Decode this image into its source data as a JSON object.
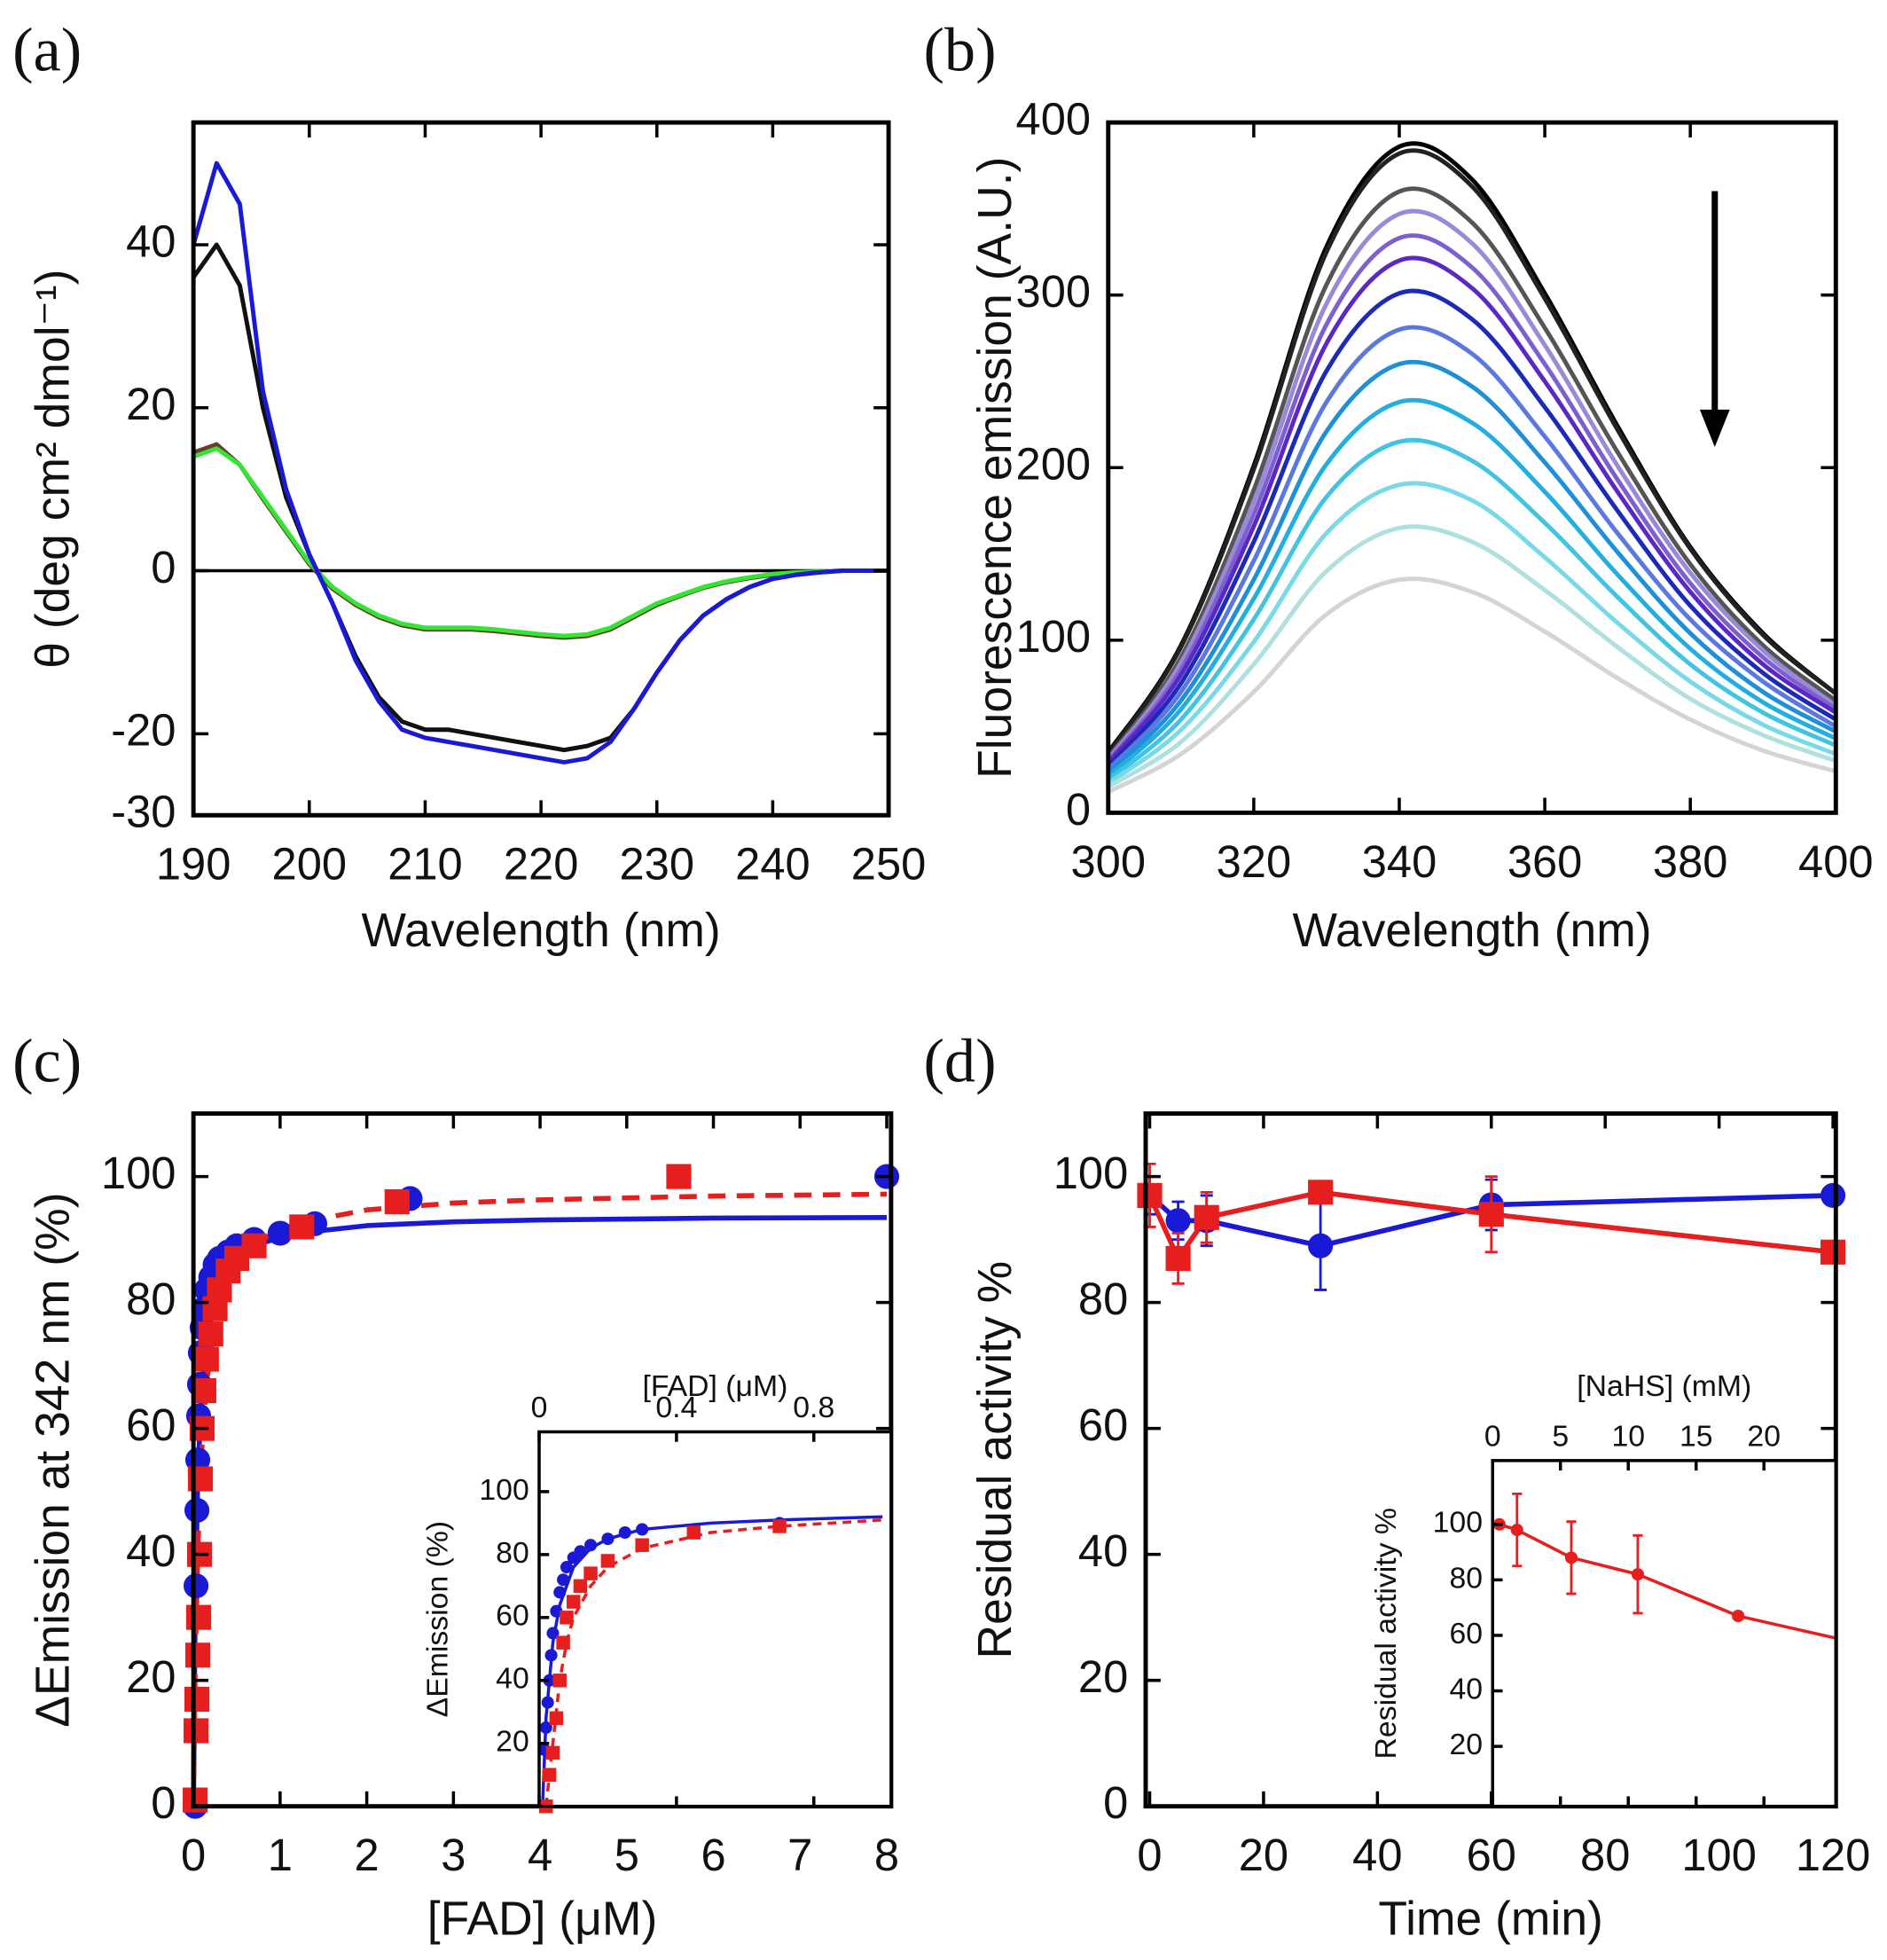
{
  "chart_data": [
    {
      "type": "line",
      "panel_label": "(a)",
      "xlabel": "Wavelength (nm)",
      "ylabel": "θ (deg cm² dmol⁻¹)",
      "xlim": [
        190,
        250
      ],
      "ylim": [
        -30,
        55
      ],
      "xticks": [
        190,
        200,
        210,
        220,
        230,
        240,
        250
      ],
      "yticks": [
        -30,
        -20,
        0,
        20,
        40
      ],
      "zero_line": true,
      "x": [
        190,
        192,
        194,
        196,
        198,
        200,
        202,
        204,
        206,
        208,
        210,
        212,
        214,
        216,
        218,
        220,
        222,
        224,
        226,
        228,
        230,
        232,
        234,
        236,
        238,
        240,
        242,
        244,
        246,
        248,
        250
      ],
      "series": [
        {
          "color": "#6b3a2a",
          "values": [
            14.5,
            15.5,
            13,
            8.8,
            4.8,
            0.8,
            -2.2,
            -4.2,
            -5.7,
            -6.7,
            -7.2,
            -7.2,
            -7.2,
            -7.4,
            -7.7,
            -8,
            -8.2,
            -8,
            -7.2,
            -5.7,
            -4.2,
            -3.1,
            -2.1,
            -1.4,
            -0.9,
            -0.5,
            -0.3,
            -0.1,
            0,
            0,
            0
          ]
        },
        {
          "color": "#33e633",
          "values": [
            14,
            15,
            13,
            9,
            5,
            1,
            -2,
            -4,
            -5.5,
            -6.5,
            -7,
            -7,
            -7,
            -7.2,
            -7.5,
            -7.8,
            -8,
            -7.8,
            -7,
            -5.5,
            -4,
            -3,
            -2,
            -1.3,
            -0.8,
            -0.4,
            -0.2,
            -0.1,
            0,
            0,
            0
          ]
        },
        {
          "color": "#111111",
          "values": [
            36,
            40,
            35,
            20,
            9,
            2,
            -4,
            -10.5,
            -15.5,
            -18.5,
            -19.5,
            -19.5,
            -20,
            -20.5,
            -21,
            -21.5,
            -22,
            -21.5,
            -20.5,
            -17,
            -12.5,
            -8.5,
            -5.5,
            -3.5,
            -2,
            -1,
            -0.5,
            -0.2,
            0,
            0,
            0
          ]
        },
        {
          "color": "#1a1ad6",
          "values": [
            40,
            50,
            45,
            22,
            10,
            2,
            -4,
            -11,
            -16,
            -19.5,
            -20.5,
            -21,
            -21.5,
            -22,
            -22.5,
            -23,
            -23.5,
            -23,
            -21,
            -17,
            -12.5,
            -8.5,
            -5.5,
            -3.5,
            -2,
            -1,
            -0.5,
            -0.2,
            0,
            0,
            0
          ]
        }
      ]
    },
    {
      "type": "line",
      "panel_label": "(b)",
      "xlabel": "Wavelength (nm)",
      "ylabel": "Fluorescence emission (A.U.)",
      "xlim": [
        300,
        400
      ],
      "ylim": [
        0,
        400
      ],
      "xticks": [
        300,
        320,
        340,
        360,
        380,
        400
      ],
      "yticks": [
        0,
        100,
        200,
        300,
        400
      ],
      "smooth": true,
      "x": [
        300,
        310,
        320,
        330,
        340,
        350,
        360,
        370,
        380,
        390,
        400
      ],
      "series": [
        {
          "color": "#000000",
          "values": [
            35,
            97,
            201,
            328,
            386,
            367,
            301,
            224,
            154,
            104,
            69
          ]
        },
        {
          "color": "#222222",
          "values": [
            34,
            96,
            199,
            325,
            382,
            363,
            298,
            222,
            153,
            103,
            69
          ]
        },
        {
          "color": "#555555",
          "values": [
            32,
            90,
            187,
            306,
            360,
            342,
            281,
            209,
            144,
            97,
            65
          ]
        },
        {
          "color": "#9a88d8",
          "values": [
            31,
            87,
            180,
            295,
            347,
            330,
            271,
            201,
            139,
            94,
            62
          ]
        },
        {
          "color": "#7c60d0",
          "values": [
            30,
            83,
            173,
            283,
            333,
            316,
            260,
            193,
            133,
            90,
            60
          ]
        },
        {
          "color": "#5a28c4",
          "values": [
            29,
            80,
            166,
            272,
            320,
            304,
            250,
            186,
            128,
            86,
            58
          ]
        },
        {
          "color": "#1c2ab8",
          "values": [
            27,
            75,
            157,
            256,
            301,
            286,
            235,
            175,
            120,
            81,
            54
          ]
        },
        {
          "color": "#5a78e0",
          "values": [
            25,
            70,
            146,
            238,
            280,
            266,
            218,
            162,
            112,
            76,
            50
          ]
        },
        {
          "color": "#1e90d8",
          "values": [
            23,
            65,
            135,
            221,
            260,
            247,
            203,
            151,
            104,
            70,
            47
          ]
        },
        {
          "color": "#22aee0",
          "values": [
            21,
            60,
            124,
            202,
            238,
            226,
            186,
            138,
            95,
            64,
            43
          ]
        },
        {
          "color": "#40c4e2",
          "values": [
            19,
            54,
            112,
            183,
            215,
            204,
            168,
            125,
            86,
            58,
            39
          ]
        },
        {
          "color": "#78dae8",
          "values": [
            17,
            48,
            99,
            162,
            190,
            181,
            148,
            110,
            76,
            51,
            34
          ]
        },
        {
          "color": "#aee0e0",
          "values": [
            15,
            41,
            86,
            140,
            165,
            157,
            129,
            96,
            66,
            45,
            30
          ]
        },
        {
          "color": "#d4d4d4",
          "values": [
            12,
            34,
            70,
            115,
            135,
            128,
            105,
            78,
            54,
            36,
            24
          ]
        }
      ]
    },
    {
      "type": "scatter",
      "panel_label": "(c)",
      "xlabel": "[FAD] (μM)",
      "ylabel": "ΔEmission at 342 nm (%)",
      "xlim": [
        0,
        8.05
      ],
      "ylim": [
        0,
        110
      ],
      "xticks": [
        0,
        1,
        2,
        3,
        4,
        5,
        6,
        7,
        8
      ],
      "yticks": [
        0,
        20,
        40,
        60,
        80,
        100
      ],
      "series": [
        {
          "color": "#1a1ad6",
          "line": "solid",
          "marker": "none",
          "x": [
            0,
            0.02,
            0.05,
            0.1,
            0.15,
            0.2,
            0.3,
            0.5,
            0.8,
            1.2,
            2,
            3,
            4,
            6,
            8
          ],
          "values": [
            0,
            31.3,
            52.2,
            67.1,
            74.2,
            78.3,
            82.9,
            87.0,
            89.5,
            91.0,
            92.2,
            92.8,
            93.1,
            93.4,
            93.5
          ]
        },
        {
          "color": "#e61e1e",
          "line": "dashed",
          "marker": "none",
          "x": [
            0,
            0.02,
            0.05,
            0.1,
            0.15,
            0.2,
            0.3,
            0.5,
            0.8,
            1.2,
            2,
            3,
            4,
            6,
            8
          ],
          "values": [
            0,
            21.8,
            40.8,
            57.6,
            66.8,
            72.6,
            79.5,
            86.0,
            90.1,
            92.6,
            94.7,
            95.8,
            96.3,
            96.9,
            97.2
          ]
        },
        {
          "color": "#1a1ad6",
          "line": "none",
          "marker": "circle",
          "x": [
            0.02,
            0.03,
            0.04,
            0.05,
            0.06,
            0.07,
            0.08,
            0.1,
            0.12,
            0.15,
            0.2,
            0.25,
            0.3,
            0.4,
            0.5,
            0.7,
            1.0,
            1.4,
            2.5,
            8.0
          ],
          "values": [
            0,
            35,
            47,
            55,
            62,
            67,
            72,
            76,
            79,
            82,
            84,
            86,
            87,
            88,
            89,
            90,
            91,
            92.5,
            96.5,
            100
          ]
        },
        {
          "color": "#e61e1e",
          "line": "none",
          "marker": "square",
          "x": [
            0.02,
            0.03,
            0.04,
            0.05,
            0.06,
            0.07,
            0.08,
            0.1,
            0.12,
            0.15,
            0.2,
            0.25,
            0.3,
            0.4,
            0.5,
            0.7,
            1.25,
            2.35,
            5.6
          ],
          "values": [
            1,
            12,
            17,
            24,
            30,
            40,
            52,
            60,
            66,
            71,
            75,
            79,
            82,
            85,
            87,
            89,
            92,
            96,
            100
          ]
        }
      ]
    },
    {
      "type": "scatter",
      "xlabel": "[FAD] (μM)",
      "ylabel": "ΔEmission (%)",
      "xlim": [
        0,
        1.025
      ],
      "ylim": [
        0,
        119
      ],
      "xticks": [
        0,
        0.4,
        0.8
      ],
      "yticks": [
        20,
        40,
        60,
        80,
        100
      ],
      "x_axis_top": true,
      "series": [
        {
          "color": "#1a1ad6",
          "line": "solid",
          "marker": "none",
          "x": [
            0.01,
            0.02,
            0.04,
            0.06,
            0.1,
            0.15,
            0.2,
            0.3,
            0.5,
            0.7,
            1.0
          ],
          "values": [
            0,
            28,
            52,
            64,
            76,
            82,
            85,
            88,
            90,
            91,
            92
          ]
        },
        {
          "color": "#e61e1e",
          "line": "dashed",
          "marker": "none",
          "x": [
            0.02,
            0.04,
            0.06,
            0.08,
            0.1,
            0.15,
            0.2,
            0.3,
            0.5,
            0.7,
            1.0
          ],
          "values": [
            0,
            20,
            40,
            52,
            60,
            70,
            76,
            82,
            87,
            89,
            91
          ]
        },
        {
          "color": "#1a1ad6",
          "line": "none",
          "marker": "circle",
          "x": [
            0.015,
            0.02,
            0.025,
            0.03,
            0.035,
            0.04,
            0.05,
            0.06,
            0.07,
            0.08,
            0.1,
            0.12,
            0.15,
            0.2,
            0.25,
            0.3,
            0.7
          ],
          "values": [
            18,
            25,
            33,
            40,
            48,
            55,
            62,
            68,
            72,
            76,
            79,
            81,
            83,
            85,
            87,
            88,
            90
          ]
        },
        {
          "color": "#e61e1e",
          "line": "none",
          "marker": "square",
          "x": [
            0.02,
            0.03,
            0.04,
            0.05,
            0.06,
            0.07,
            0.08,
            0.1,
            0.12,
            0.15,
            0.2,
            0.3,
            0.45,
            0.7
          ],
          "values": [
            0,
            10,
            17,
            28,
            40,
            52,
            60,
            65,
            70,
            74,
            78,
            83,
            87,
            89
          ]
        }
      ]
    },
    {
      "type": "scatter",
      "panel_label": "(d)",
      "xlabel": "Time (min)",
      "ylabel": "Residual activity %",
      "xlim": [
        -0.7,
        120.5
      ],
      "ylim": [
        0,
        110
      ],
      "xticks": [
        0,
        20,
        40,
        60,
        80,
        100,
        120
      ],
      "yticks": [
        0,
        20,
        40,
        60,
        80,
        100
      ],
      "series": [
        {
          "color": "#1a1ad6",
          "line": "solid",
          "marker": "circle",
          "x": [
            0,
            5,
            10,
            30,
            60,
            120
          ],
          "values": [
            97,
            93,
            93,
            89,
            95.5,
            97
          ],
          "errors": [
            3,
            3,
            4,
            7,
            4,
            1
          ]
        },
        {
          "color": "#e61e1e",
          "line": "solid",
          "marker": "square",
          "x": [
            0,
            5,
            10,
            30,
            60,
            120
          ],
          "values": [
            97,
            87,
            93.5,
            97.5,
            94,
            88
          ],
          "errors": [
            5,
            4,
            4,
            1,
            6,
            1
          ]
        }
      ]
    },
    {
      "type": "scatter",
      "xlabel": "[NaHS] (mM)",
      "ylabel": "Residual activity %",
      "xlim": [
        0,
        25.3
      ],
      "ylim": [
        -1.6,
        123
      ],
      "xticks": [
        0,
        5,
        10,
        15,
        20
      ],
      "yticks": [
        20,
        40,
        60,
        80,
        100
      ],
      "x_axis_top": true,
      "series": [
        {
          "color": "#e61e1e",
          "line": "solid",
          "marker": "none",
          "x": [
            18.1,
            25.3
          ],
          "values": [
            67,
            59
          ]
        },
        {
          "color": "#e61e1e",
          "line": "solid",
          "marker": "circle",
          "x": [
            0.5,
            1.8,
            5.8,
            10.7,
            18.1
          ],
          "values": [
            100,
            98,
            88,
            82,
            67
          ],
          "errors": [
            0,
            13,
            13,
            14,
            1
          ]
        }
      ]
    }
  ]
}
